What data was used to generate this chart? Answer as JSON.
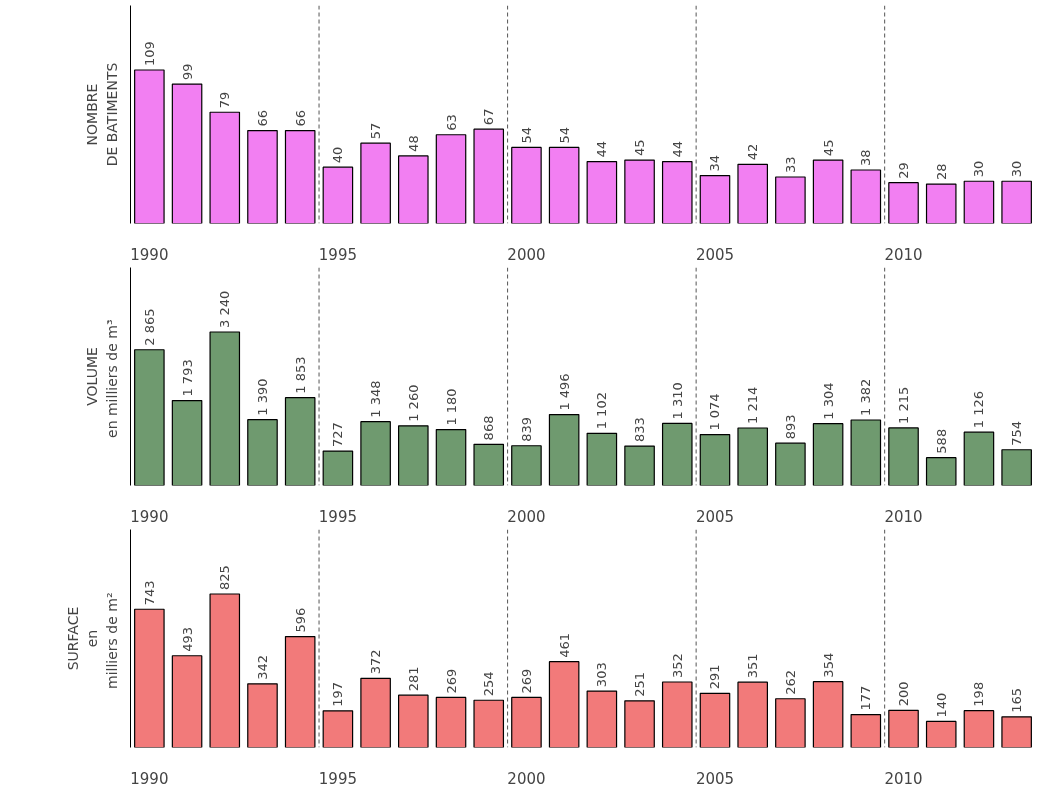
{
  "chart_data": [
    {
      "type": "bar",
      "ylabel": "NOMBRE\nDE BATIMENTS",
      "categories": [
        "1990",
        null,
        null,
        null,
        null,
        "1995",
        null,
        null,
        null,
        null,
        "2000",
        null,
        null,
        null,
        null,
        "2005",
        null,
        null,
        null,
        null,
        "2010",
        null,
        null,
        null
      ],
      "values": [
        109,
        99,
        79,
        66,
        66,
        40,
        57,
        48,
        63,
        67,
        54,
        54,
        44,
        45,
        44,
        34,
        42,
        33,
        45,
        38,
        29,
        28,
        30,
        30
      ],
      "color": "#f27ff2",
      "data_labels": true,
      "grid": "x",
      "tick_labels": "x"
    },
    {
      "type": "bar",
      "ylabel": "VOLUME\nen milliers  de m³",
      "categories": [
        "1990",
        null,
        null,
        null,
        null,
        "1995",
        null,
        null,
        null,
        null,
        "2000",
        null,
        null,
        null,
        null,
        "2005",
        null,
        null,
        null,
        null,
        "2010",
        null,
        null,
        null
      ],
      "values": [
        2865,
        1793,
        3240,
        1390,
        1853,
        727,
        1348,
        1260,
        1180,
        868,
        839,
        1496,
        1102,
        833,
        1310,
        1074,
        1214,
        893,
        1304,
        1382,
        1215,
        588,
        1126,
        754
      ],
      "value_labels": [
        "2 865",
        "1 793",
        "3 240",
        "1 390",
        "1 853",
        "727",
        "1 348",
        "1 260",
        "1 180",
        "868",
        "839",
        "1 496",
        "1 102",
        "833",
        "1 310",
        "1 074",
        "1 214",
        "893",
        "1 304",
        "1 382",
        "1 215",
        "588",
        "1 126",
        "754"
      ],
      "color": "#6f9a6f",
      "grid": "x",
      "tick_labels": "x"
    },
    {
      "type": "bar",
      "ylabel": "SURFACE\nen\nmilliers  de m²",
      "categories": [
        "1990",
        null,
        null,
        null,
        null,
        "1995",
        null,
        null,
        null,
        null,
        "2000",
        null,
        null,
        null,
        null,
        "2005",
        null,
        null,
        null,
        null,
        "2010",
        null,
        null,
        null
      ],
      "values": [
        743,
        493,
        825,
        342,
        596,
        197,
        372,
        281,
        269,
        254,
        269,
        461,
        303,
        251,
        352,
        291,
        351,
        262,
        354,
        177,
        200,
        140,
        198,
        165
      ],
      "color": "#f27a7a",
      "data_labels": true,
      "grid": "x",
      "tick_labels": "x"
    }
  ]
}
